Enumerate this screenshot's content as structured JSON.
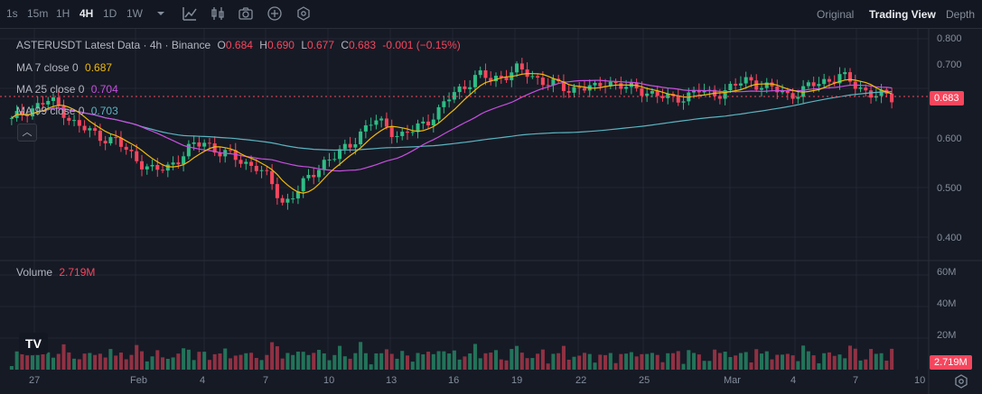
{
  "toolbar": {
    "intervals": [
      "1s",
      "15m",
      "1H",
      "4H",
      "1D",
      "1W"
    ],
    "active_interval": "4H",
    "views": [
      "Original",
      "Trading View",
      "Depth"
    ],
    "active_view": "Trading View"
  },
  "legend": {
    "symbol": "ASTERUSDT Latest Data · 4h · Binance",
    "o_label": "O",
    "o": "0.684",
    "h_label": "H",
    "h": "0.690",
    "l_label": "L",
    "l": "0.677",
    "c_label": "C",
    "c": "0.683",
    "change": "-0.001 (−0.15%)",
    "ma7_label": "MA 7 close 0",
    "ma7": "0.687",
    "ma25_label": "MA 25 close 0",
    "ma25": "0.704",
    "ma99_label": "MA 99 close 0",
    "ma99": "0.703",
    "volume_label": "Volume",
    "volume": "2.719M"
  },
  "price_axis": [
    "0.800",
    "0.700",
    "0.600",
    "0.500",
    "0.400"
  ],
  "current_price": "0.683",
  "volume_axis": [
    "60M",
    "40M",
    "20M"
  ],
  "current_volume": "2.719M",
  "time_axis": [
    "27",
    "Feb",
    "4",
    "7",
    "10",
    "13",
    "16",
    "19",
    "22",
    "25",
    "Mar",
    "4",
    "7",
    "10"
  ],
  "colors": {
    "up": "#2ebd85",
    "down": "#f6465d",
    "ma7": "#f0b90b",
    "ma25": "#c84fe0",
    "ma99": "#5ab4c0",
    "bg": "#161a25"
  },
  "chart_data": {
    "type": "candlestick",
    "ylim": [
      0.38,
      0.82
    ],
    "series": [
      {
        "name": "close",
        "values": [
          0.64,
          0.66,
          0.67,
          0.68,
          0.66,
          0.63,
          0.62,
          0.61,
          0.6,
          0.58,
          0.56,
          0.54,
          0.55,
          0.57,
          0.59,
          0.6,
          0.58,
          0.57,
          0.56,
          0.55,
          0.52,
          0.48,
          0.5,
          0.53,
          0.56,
          0.57,
          0.59,
          0.62,
          0.64,
          0.63,
          0.61,
          0.62,
          0.64,
          0.66,
          0.69,
          0.71,
          0.73,
          0.72,
          0.73,
          0.74,
          0.73,
          0.72,
          0.71,
          0.7,
          0.71,
          0.7,
          0.72,
          0.71,
          0.7,
          0.7,
          0.69,
          0.68,
          0.69,
          0.7,
          0.69,
          0.7,
          0.71,
          0.72,
          0.71,
          0.7,
          0.69,
          0.7,
          0.71,
          0.72,
          0.73,
          0.71,
          0.7,
          0.69,
          0.683
        ]
      }
    ]
  }
}
